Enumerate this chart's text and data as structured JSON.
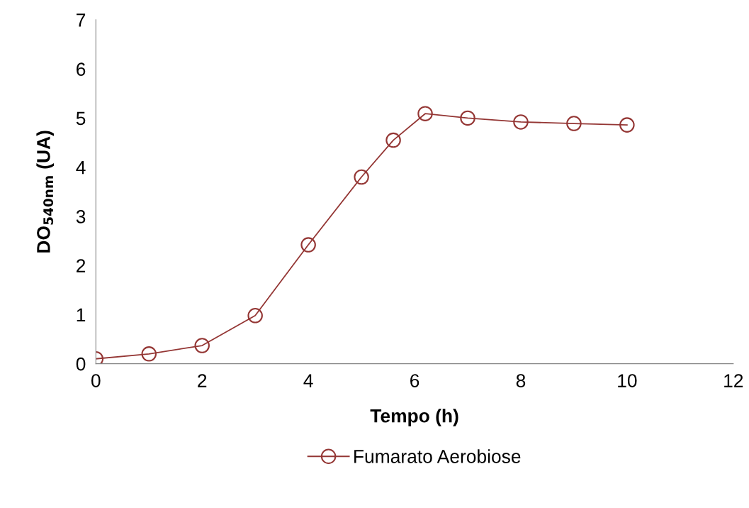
{
  "chart_data": {
    "type": "line",
    "xlabel": "Tempo (h)",
    "ylabel": "DO$_{540nm}$ (UA)",
    "x": [
      0,
      1,
      2,
      3,
      4,
      5,
      5.6,
      6.2,
      7,
      8,
      9,
      10
    ],
    "series": [
      {
        "name": "Fumarato Aerobiose",
        "color": "#943634",
        "values": [
          0.1,
          0.2,
          0.37,
          0.98,
          2.42,
          3.8,
          4.55,
          5.09,
          5.0,
          4.92,
          4.89,
          4.86
        ]
      }
    ],
    "xlim": [
      0,
      12
    ],
    "xticks": [
      0,
      2,
      4,
      6,
      8,
      10,
      12
    ],
    "ylim": [
      0,
      7
    ],
    "yticks": [
      0,
      1,
      2,
      3,
      4,
      5,
      6,
      7
    ],
    "marker": "circle",
    "line_style": "solid",
    "grid": false,
    "legend": "bottom"
  }
}
